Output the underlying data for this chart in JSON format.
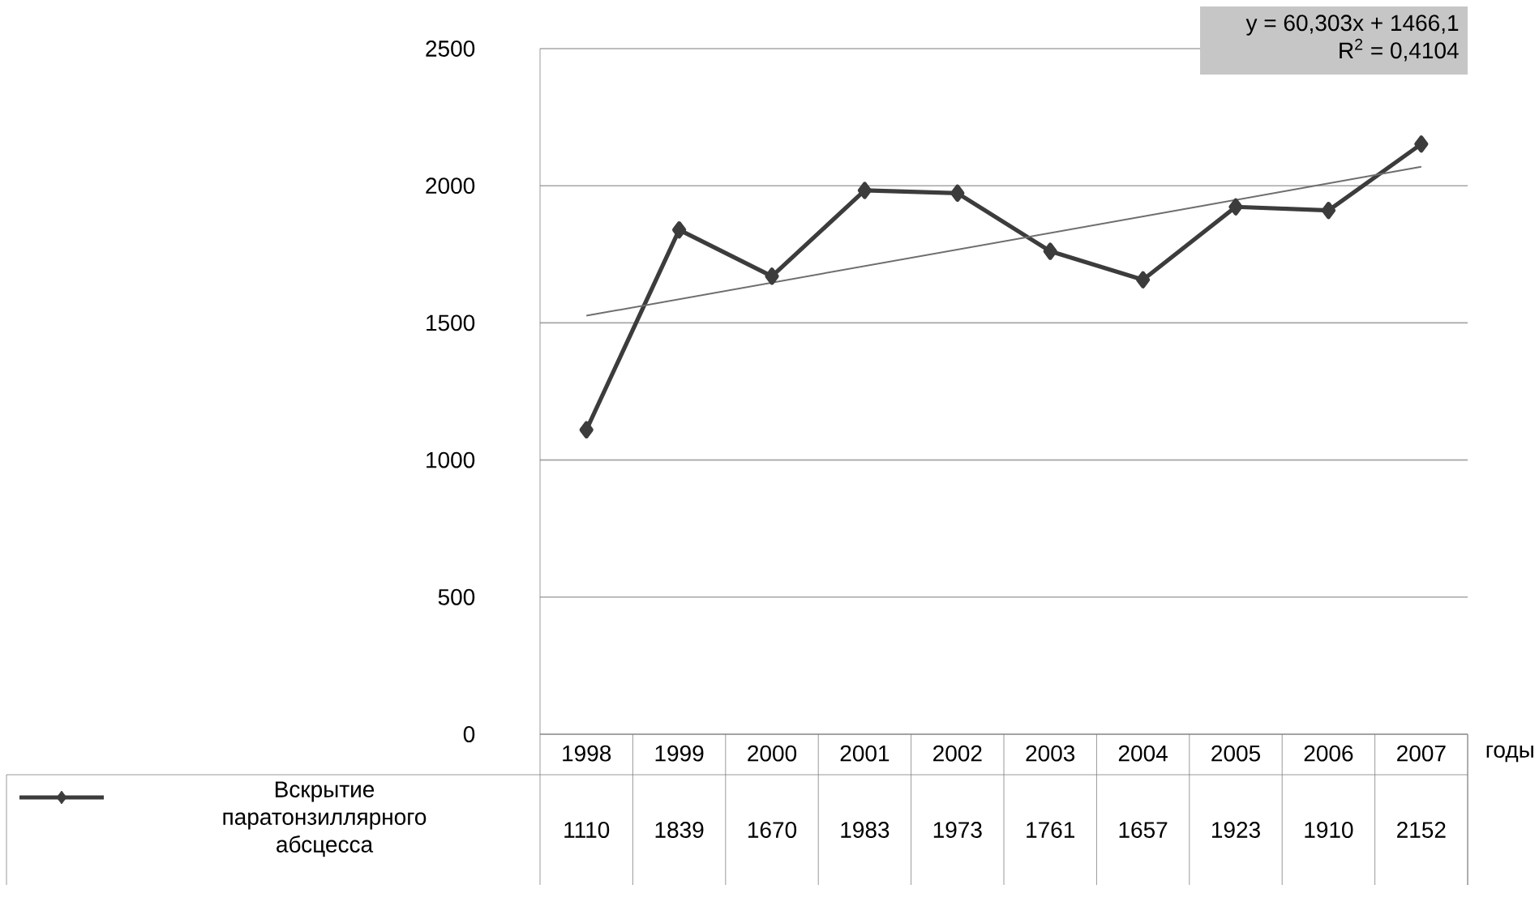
{
  "chart_data": {
    "type": "line",
    "categories": [
      "1998",
      "1999",
      "2000",
      "2001",
      "2002",
      "2003",
      "2004",
      "2005",
      "2006",
      "2007"
    ],
    "xlabel": "годы",
    "series": [
      {
        "name": "Вскрытие паратонзиллярного абсцесса",
        "color": "#3c3c3c",
        "values": [
          1110,
          1839,
          1670,
          1983,
          1973,
          1761,
          1657,
          1923,
          1910,
          2152
        ],
        "value_labels": [
          "1110",
          "1839",
          "1670",
          "1983",
          "1973",
          "1761",
          "1657",
          "1923",
          "1910",
          "2152"
        ],
        "marker": "diamond",
        "line_style": "solid"
      },
      {
        "type": "line",
        "color": "#6e6e6e",
        "values": [
          1526,
          null,
          null,
          null,
          null,
          null,
          null,
          null,
          null,
          2069
        ],
        "marker": "none",
        "line_style": "solid"
      }
    ],
    "ylim": [
      0,
      2500
    ],
    "yticks": [
      0,
      500,
      1000,
      1500,
      2000,
      2500
    ],
    "grid": "y",
    "legend": "bottom",
    "annotations": [
      "y = 60,303x + 1466,1",
      "R$^{2}$ = 0,4104"
    ]
  }
}
